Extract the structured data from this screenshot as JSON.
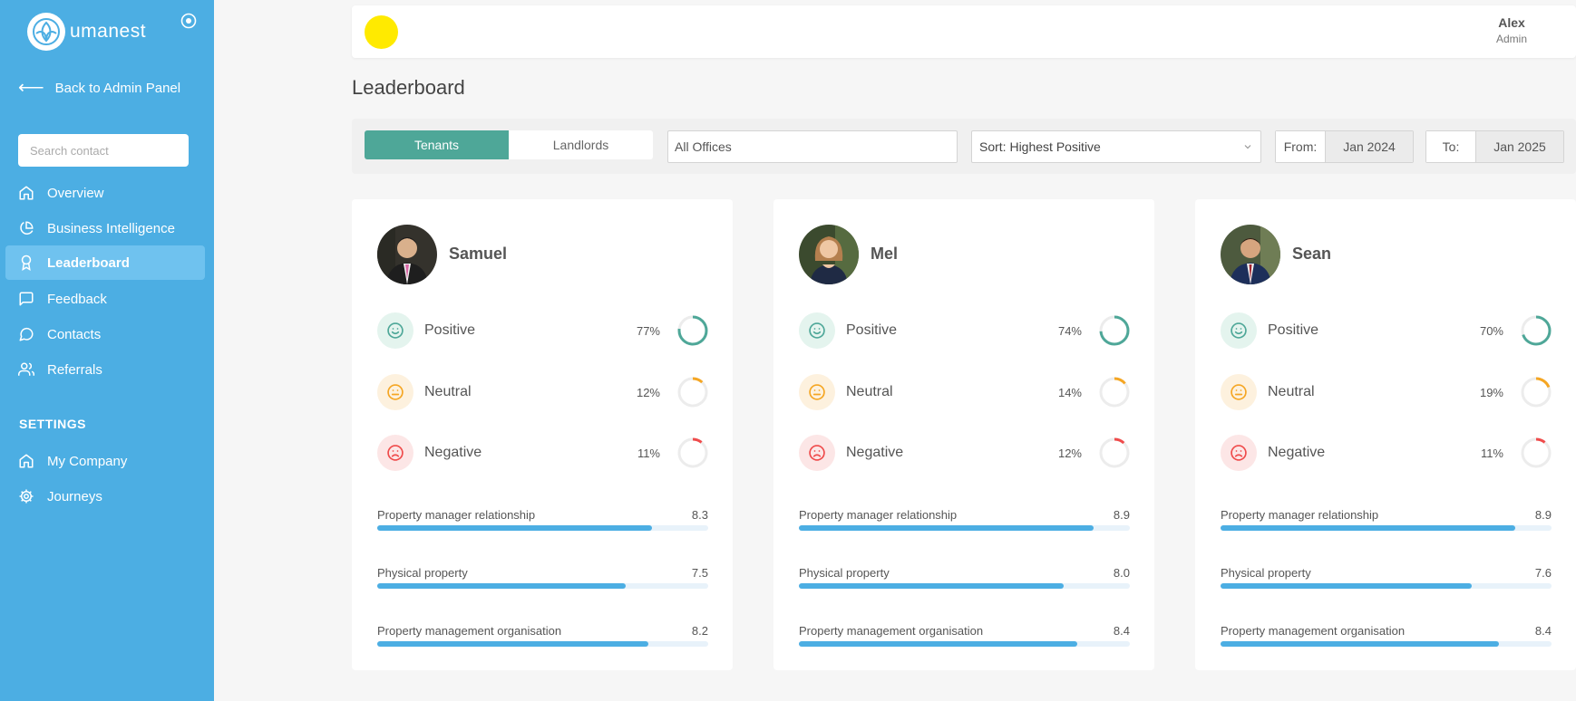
{
  "sidebar": {
    "logo_text": "umanest",
    "back_label": "Back to Admin Panel",
    "search_placeholder": "Search contact",
    "items": [
      {
        "label": "Overview",
        "icon": "home-icon",
        "active": false
      },
      {
        "label": "Business Intelligence",
        "icon": "pie-chart-icon",
        "active": false
      },
      {
        "label": "Leaderboard",
        "icon": "award-icon",
        "active": true
      },
      {
        "label": "Feedback",
        "icon": "message-square-icon",
        "active": false
      },
      {
        "label": "Contacts",
        "icon": "message-circle-icon",
        "active": false
      },
      {
        "label": "Referrals",
        "icon": "users-icon",
        "active": false
      }
    ],
    "settings_label": "SETTINGS",
    "settings_items": [
      {
        "label": "My Company",
        "icon": "home-icon"
      },
      {
        "label": "Journeys",
        "icon": "gear-icon"
      }
    ]
  },
  "header": {
    "user_name": "Alex",
    "user_role": "Admin"
  },
  "page": {
    "title": "Leaderboard"
  },
  "filters": {
    "tabs": [
      {
        "label": "Tenants",
        "active": true
      },
      {
        "label": "Landlords",
        "active": false
      }
    ],
    "office_value": "All Offices",
    "sort_value": "Sort: Highest Positive",
    "from_label": "From:",
    "from_value": "Jan 2024",
    "to_label": "To:",
    "to_value": "Jan 2025"
  },
  "colors": {
    "sidebar": "#4caee3",
    "accent": "#4ea798",
    "positive": "#4ea798",
    "neutral": "#f5a623",
    "negative": "#ef4b4b",
    "bar": "#4caee3"
  },
  "cards": [
    {
      "name": "Samuel",
      "sentiment": [
        {
          "label": "Positive",
          "pct": "77%",
          "value": 77
        },
        {
          "label": "Neutral",
          "pct": "12%",
          "value": 12
        },
        {
          "label": "Negative",
          "pct": "11%",
          "value": 11
        }
      ],
      "metrics": [
        {
          "label": "Property manager relationship",
          "score": "8.3",
          "fill": 0.83
        },
        {
          "label": "Physical property",
          "score": "7.5",
          "fill": 0.75
        },
        {
          "label": "Property management organisation",
          "score": "8.2",
          "fill": 0.82
        }
      ]
    },
    {
      "name": "Mel",
      "sentiment": [
        {
          "label": "Positive",
          "pct": "74%",
          "value": 74
        },
        {
          "label": "Neutral",
          "pct": "14%",
          "value": 14
        },
        {
          "label": "Negative",
          "pct": "12%",
          "value": 12
        }
      ],
      "metrics": [
        {
          "label": "Property manager relationship",
          "score": "8.9",
          "fill": 0.89
        },
        {
          "label": "Physical property",
          "score": "8.0",
          "fill": 0.8
        },
        {
          "label": "Property management organisation",
          "score": "8.4",
          "fill": 0.84
        }
      ]
    },
    {
      "name": "Sean",
      "sentiment": [
        {
          "label": "Positive",
          "pct": "70%",
          "value": 70
        },
        {
          "label": "Neutral",
          "pct": "19%",
          "value": 19
        },
        {
          "label": "Negative",
          "pct": "11%",
          "value": 11
        }
      ],
      "metrics": [
        {
          "label": "Property manager relationship",
          "score": "8.9",
          "fill": 0.89
        },
        {
          "label": "Physical property",
          "score": "7.6",
          "fill": 0.76
        },
        {
          "label": "Property management organisation",
          "score": "8.4",
          "fill": 0.84
        }
      ]
    }
  ]
}
